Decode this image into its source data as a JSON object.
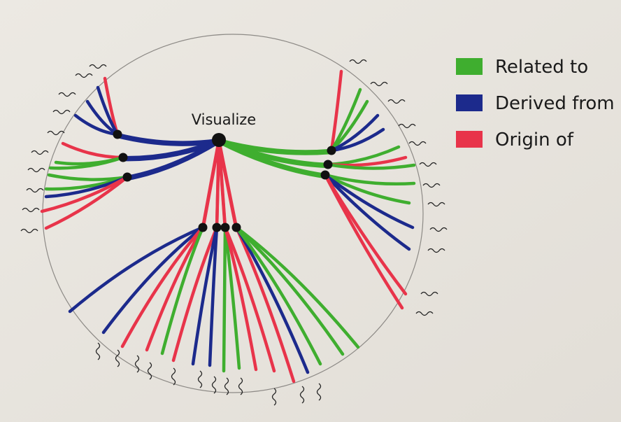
{
  "center": {
    "label": "Visualize"
  },
  "legend": [
    {
      "label": "Related to",
      "color": "#3fae2f"
    },
    {
      "label": "Derived from",
      "color": "#1c2a8c"
    },
    {
      "label": "Origin of",
      "color": "#e8344a"
    }
  ]
}
